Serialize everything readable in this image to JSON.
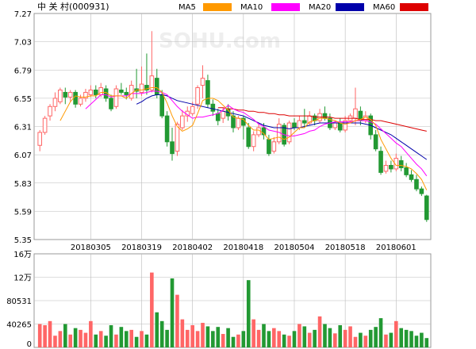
{
  "title": "中 关 村(000931)",
  "watermark": "SOHU.com",
  "legend": [
    {
      "label": "MA5",
      "color": "#ff9900"
    },
    {
      "label": "MA10",
      "color": "#ff00ff"
    },
    {
      "label": "MA20",
      "color": "#0000aa"
    },
    {
      "label": "MA60",
      "color": "#dd0000"
    }
  ],
  "colors": {
    "up": "#ff6666",
    "down": "#229933",
    "grid": "#bbbbbb",
    "axis_text": "#000000"
  },
  "price_axis": {
    "ylim": [
      5.35,
      7.27
    ],
    "ticks": [
      "7.27",
      "7.03",
      "6.79",
      "6.55",
      "6.31",
      "6.07",
      "5.83",
      "5.59",
      "5.35"
    ]
  },
  "volume_axis": {
    "ylim": [
      0,
      160000
    ],
    "ticks": [
      "16万",
      "12万",
      "80531",
      "40265",
      "0"
    ]
  },
  "dates": [
    "20180305",
    "20180319",
    "20180402",
    "20180418",
    "20180504",
    "20180518",
    "20180601"
  ],
  "chart_data": {
    "type": "candlestick",
    "title": "中 关 村(000931)",
    "series_names": [
      "MA5",
      "MA10",
      "MA20",
      "MA60"
    ],
    "date_tick_indices": [
      10,
      20,
      30,
      40,
      50,
      60,
      70
    ],
    "candles": [
      [
        6.15,
        6.26,
        6.1,
        6.28
      ],
      [
        6.26,
        6.38,
        6.24,
        6.4
      ],
      [
        6.4,
        6.48,
        6.36,
        6.5
      ],
      [
        6.48,
        6.55,
        6.44,
        6.6
      ],
      [
        6.52,
        6.62,
        6.5,
        6.64
      ],
      [
        6.6,
        6.56,
        6.5,
        6.64
      ],
      [
        6.56,
        6.6,
        6.52,
        6.62
      ],
      [
        6.6,
        6.5,
        6.47,
        6.62
      ],
      [
        6.5,
        6.55,
        6.48,
        6.58
      ],
      [
        6.55,
        6.6,
        6.52,
        6.63
      ],
      [
        6.58,
        6.62,
        6.56,
        6.66
      ],
      [
        6.62,
        6.58,
        6.55,
        6.66
      ],
      [
        6.58,
        6.64,
        6.56,
        6.68
      ],
      [
        6.63,
        6.55,
        6.52,
        6.66
      ],
      [
        6.55,
        6.46,
        6.44,
        6.58
      ],
      [
        6.48,
        6.63,
        6.46,
        6.66
      ],
      [
        6.62,
        6.6,
        6.58,
        6.68
      ],
      [
        6.6,
        6.58,
        6.54,
        6.64
      ],
      [
        6.55,
        6.66,
        6.53,
        6.7
      ],
      [
        6.63,
        6.61,
        6.55,
        6.8
      ],
      [
        6.6,
        6.67,
        6.57,
        6.82
      ],
      [
        6.66,
        6.62,
        6.58,
        6.93
      ],
      [
        6.62,
        6.74,
        6.6,
        7.12
      ],
      [
        6.72,
        6.58,
        6.55,
        6.8
      ],
      [
        6.58,
        6.4,
        6.38,
        6.62
      ],
      [
        6.4,
        6.18,
        6.14,
        6.44
      ],
      [
        6.18,
        6.08,
        6.02,
        6.3
      ],
      [
        6.1,
        6.33,
        6.06,
        6.35
      ],
      [
        6.3,
        6.4,
        6.28,
        6.45
      ],
      [
        6.4,
        6.44,
        6.35,
        6.48
      ],
      [
        6.42,
        6.48,
        6.4,
        6.52
      ],
      [
        6.5,
        6.64,
        6.46,
        6.66
      ],
      [
        6.66,
        6.72,
        6.55,
        6.83
      ],
      [
        6.7,
        6.5,
        6.47,
        6.75
      ],
      [
        6.5,
        6.44,
        6.4,
        6.54
      ],
      [
        6.42,
        6.36,
        6.32,
        6.46
      ],
      [
        6.38,
        6.44,
        6.34,
        6.47
      ],
      [
        6.46,
        6.4,
        6.36,
        6.5
      ],
      [
        6.4,
        6.3,
        6.26,
        6.44
      ],
      [
        6.3,
        6.38,
        6.28,
        6.4
      ],
      [
        6.38,
        6.32,
        6.2,
        6.4
      ],
      [
        6.3,
        6.14,
        6.12,
        6.34
      ],
      [
        6.14,
        6.24,
        6.1,
        6.27
      ],
      [
        6.24,
        6.3,
        6.22,
        6.33
      ],
      [
        6.3,
        6.24,
        6.2,
        6.34
      ],
      [
        6.2,
        6.08,
        6.06,
        6.24
      ],
      [
        6.1,
        6.18,
        6.08,
        6.22
      ],
      [
        6.18,
        6.33,
        6.16,
        6.38
      ],
      [
        6.32,
        6.16,
        6.14,
        6.34
      ],
      [
        6.18,
        6.34,
        6.16,
        6.36
      ],
      [
        6.34,
        6.3,
        6.28,
        6.38
      ],
      [
        6.3,
        6.36,
        6.28,
        6.4
      ],
      [
        6.36,
        6.34,
        6.3,
        6.46
      ],
      [
        6.34,
        6.4,
        6.32,
        6.44
      ],
      [
        6.4,
        6.36,
        6.32,
        6.42
      ],
      [
        6.36,
        6.42,
        6.34,
        6.46
      ],
      [
        6.42,
        6.38,
        6.36,
        6.48
      ],
      [
        6.38,
        6.3,
        6.28,
        6.42
      ],
      [
        6.3,
        6.34,
        6.28,
        6.36
      ],
      [
        6.34,
        6.28,
        6.26,
        6.38
      ],
      [
        6.28,
        6.36,
        6.26,
        6.4
      ],
      [
        6.36,
        6.4,
        6.34,
        6.42
      ],
      [
        6.38,
        6.46,
        6.32,
        6.64
      ],
      [
        6.44,
        6.36,
        6.32,
        6.48
      ],
      [
        6.36,
        6.4,
        6.34,
        6.44
      ],
      [
        6.4,
        6.24,
        6.2,
        6.42
      ],
      [
        6.24,
        6.12,
        6.1,
        6.28
      ],
      [
        6.1,
        5.92,
        5.9,
        6.14
      ],
      [
        5.93,
        5.98,
        5.91,
        6.02
      ],
      [
        5.98,
        5.95,
        5.92,
        6.02
      ],
      [
        5.95,
        6.04,
        5.93,
        6.08
      ],
      [
        6.02,
        5.96,
        5.93,
        6.06
      ],
      [
        5.96,
        5.9,
        5.88,
        6.0
      ],
      [
        5.9,
        5.86,
        5.84,
        5.94
      ],
      [
        5.86,
        5.78,
        5.76,
        5.9
      ],
      [
        5.78,
        5.74,
        5.72,
        5.8
      ],
      [
        5.72,
        5.52,
        5.5,
        5.73
      ]
    ],
    "ma5": [
      null,
      null,
      null,
      null,
      6.36,
      6.44,
      6.52,
      6.57,
      6.56,
      6.56,
      6.57,
      6.57,
      6.6,
      6.6,
      6.57,
      6.57,
      6.57,
      6.55,
      6.59,
      6.62,
      6.62,
      6.63,
      6.64,
      6.64,
      6.6,
      6.51,
      6.4,
      6.31,
      6.27,
      6.29,
      6.32,
      6.42,
      6.53,
      6.55,
      6.55,
      6.53,
      6.49,
      6.45,
      6.39,
      6.38,
      6.37,
      6.32,
      6.28,
      6.28,
      6.25,
      6.2,
      6.21,
      6.22,
      6.2,
      6.22,
      6.26,
      6.3,
      6.3,
      6.35,
      6.36,
      6.38,
      6.38,
      6.37,
      6.36,
      6.34,
      6.33,
      6.34,
      6.36,
      6.37,
      6.39,
      6.37,
      6.32,
      6.2,
      6.12,
      6.04,
      5.98,
      5.98,
      5.97,
      5.95,
      5.91,
      5.86,
      5.77
    ],
    "ma10": [
      null,
      null,
      null,
      null,
      null,
      null,
      null,
      null,
      null,
      6.46,
      6.5,
      6.54,
      6.58,
      6.58,
      6.56,
      6.57,
      6.57,
      6.57,
      6.59,
      6.59,
      6.59,
      6.6,
      6.61,
      6.61,
      6.6,
      6.58,
      6.53,
      6.48,
      6.44,
      6.41,
      6.38,
      6.39,
      6.39,
      6.4,
      6.41,
      6.42,
      6.45,
      6.49,
      6.46,
      6.44,
      6.43,
      6.4,
      6.37,
      6.33,
      6.31,
      6.28,
      6.27,
      6.26,
      6.24,
      6.23,
      6.23,
      6.24,
      6.25,
      6.27,
      6.28,
      6.31,
      6.33,
      6.34,
      6.35,
      6.35,
      6.35,
      6.35,
      6.36,
      6.36,
      6.36,
      6.35,
      6.33,
      6.29,
      6.25,
      6.21,
      6.17,
      6.14,
      6.09,
      6.04,
      5.99,
      5.95,
      5.89
    ],
    "ma20": [
      null,
      null,
      null,
      null,
      null,
      null,
      null,
      null,
      null,
      null,
      null,
      null,
      null,
      null,
      null,
      null,
      null,
      null,
      null,
      6.5,
      6.52,
      6.55,
      6.57,
      6.58,
      6.58,
      6.57,
      6.55,
      6.53,
      6.52,
      6.51,
      6.5,
      6.49,
      6.48,
      6.47,
      6.46,
      6.45,
      6.44,
      6.43,
      6.42,
      6.41,
      6.4,
      6.38,
      6.36,
      6.34,
      6.32,
      6.31,
      6.3,
      6.3,
      6.3,
      6.29,
      6.3,
      6.3,
      6.31,
      6.32,
      6.33,
      6.34,
      6.34,
      6.34,
      6.34,
      6.34,
      6.34,
      6.34,
      6.34,
      6.34,
      6.33,
      6.32,
      6.3,
      6.28,
      6.26,
      6.24,
      6.21,
      6.18,
      6.15,
      6.12,
      6.09,
      6.06,
      6.03
    ],
    "ma60": [
      null,
      null,
      null,
      null,
      null,
      null,
      null,
      null,
      null,
      null,
      null,
      null,
      null,
      null,
      null,
      null,
      null,
      null,
      null,
      null,
      null,
      null,
      null,
      null,
      null,
      null,
      null,
      null,
      null,
      null,
      null,
      null,
      null,
      null,
      null,
      6.47,
      6.47,
      6.46,
      6.46,
      6.45,
      6.45,
      6.44,
      6.44,
      6.43,
      6.43,
      6.42,
      6.42,
      6.41,
      6.41,
      6.4,
      6.4,
      6.4,
      6.4,
      6.4,
      6.39,
      6.39,
      6.39,
      6.39,
      6.38,
      6.38,
      6.38,
      6.38,
      6.38,
      6.37,
      6.37,
      6.37,
      6.36,
      6.36,
      6.35,
      6.34,
      6.33,
      6.32,
      6.31,
      6.3,
      6.29,
      6.28,
      6.27
    ],
    "volume": [
      40000,
      38000,
      45000,
      20000,
      28000,
      40000,
      22000,
      33000,
      30000,
      25000,
      45000,
      22000,
      28000,
      20000,
      38000,
      22000,
      35000,
      28000,
      30000,
      18000,
      28000,
      22000,
      128000,
      60000,
      45000,
      30000,
      118000,
      90000,
      48000,
      30000,
      38000,
      28000,
      42000,
      36000,
      28000,
      35000,
      23000,
      33000,
      18000,
      22000,
      28000,
      115000,
      48000,
      30000,
      40000,
      28000,
      33000,
      28000,
      22000,
      20000,
      28000,
      40000,
      36000,
      25000,
      30000,
      53000,
      40000,
      33000,
      24000,
      38000,
      30000,
      36000,
      18000,
      25000,
      20000,
      30000,
      35000,
      50000,
      22000,
      25000,
      45000,
      33000,
      30000,
      28000,
      20000,
      25000,
      16000
    ],
    "ylim": [
      5.35,
      7.27
    ]
  }
}
